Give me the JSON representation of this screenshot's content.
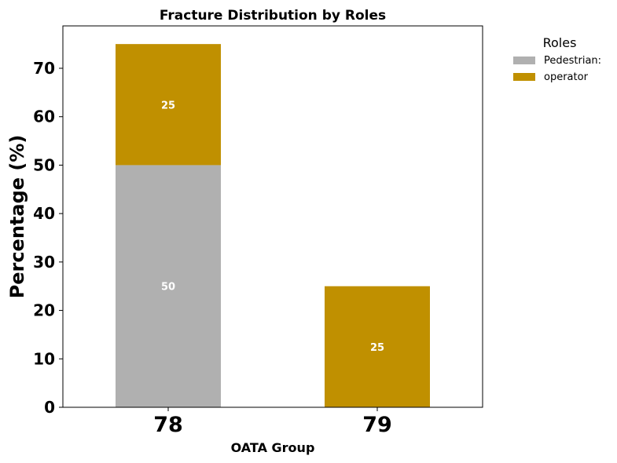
{
  "chart_data": {
    "type": "bar",
    "stacked": true,
    "title": "Fracture Distribution by Roles",
    "xlabel": "OATA Group",
    "ylabel": "Percentage (%)",
    "categories": [
      "78",
      "79"
    ],
    "series": [
      {
        "name": "Pedestrian:",
        "values": [
          50,
          0
        ],
        "color": "#b0b0b0",
        "labels": [
          "50",
          ""
        ]
      },
      {
        "name": "operator",
        "values": [
          25,
          25
        ],
        "color": "#c09000",
        "labels": [
          "25",
          "25"
        ]
      }
    ],
    "ylim": [
      0,
      78.75
    ],
    "yticks": [
      "0",
      "10",
      "20",
      "30",
      "40",
      "50",
      "60",
      "70"
    ],
    "grid": false,
    "legend": {
      "title": "Roles",
      "placement": "outside-top-right"
    }
  }
}
